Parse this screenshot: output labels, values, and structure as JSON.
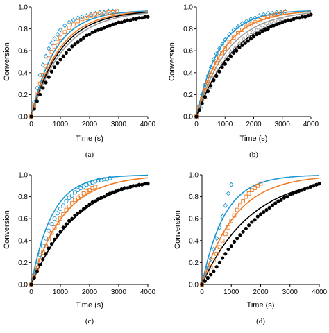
{
  "figure": {
    "panels": [
      {
        "id": "a",
        "label": "(a)"
      },
      {
        "id": "b",
        "label": "(b)"
      },
      {
        "id": "c",
        "label": "(c)"
      },
      {
        "id": "d",
        "label": "(d)"
      }
    ]
  },
  "chart_data": [
    {
      "type": "scatter",
      "panel": "(a)",
      "xlabel": "Time (s)",
      "ylabel": "Conversion",
      "xlim": [
        0,
        4000
      ],
      "ylim": [
        0,
        1.0
      ],
      "xticks": [
        "0",
        "1000",
        "2000",
        "3000",
        "4000"
      ],
      "yticks": [
        "0.0",
        "0.2",
        "0.4",
        "0.6",
        "0.8",
        "1.0"
      ],
      "grid": false,
      "legend": "none",
      "series": [
        {
          "color": "#1a95d0",
          "marker": "diamond-open",
          "x": [
            0,
            100,
            200,
            300,
            400,
            500,
            600,
            700,
            800,
            900,
            1000,
            1150,
            1300,
            1450,
            1600,
            1750,
            1900,
            2050,
            2200,
            2350,
            2500,
            2650,
            2800,
            2950
          ],
          "y": [
            0.0,
            0.13,
            0.26,
            0.38,
            0.47,
            0.55,
            0.62,
            0.67,
            0.71,
            0.75,
            0.79,
            0.83,
            0.86,
            0.88,
            0.9,
            0.91,
            0.92,
            0.93,
            0.94,
            0.95,
            0.95,
            0.96,
            0.96,
            0.96
          ]
        },
        {
          "color": "#ee7a24",
          "marker": "square-open",
          "x": [
            0,
            100,
            200,
            300,
            400,
            500,
            600,
            700,
            800,
            900,
            1000,
            1150,
            1300,
            1450,
            1600,
            1750,
            1900,
            2050,
            2200,
            2350,
            2500,
            2650,
            2800,
            2950
          ],
          "y": [
            0.0,
            0.1,
            0.2,
            0.3,
            0.38,
            0.46,
            0.53,
            0.59,
            0.64,
            0.68,
            0.72,
            0.77,
            0.81,
            0.84,
            0.87,
            0.89,
            0.9,
            0.92,
            0.93,
            0.94,
            0.94,
            0.95,
            0.95,
            0.96
          ]
        },
        {
          "color": "#000000",
          "marker": "circle-filled",
          "x": [
            0,
            100,
            200,
            300,
            400,
            500,
            600,
            700,
            800,
            900,
            1000,
            1100,
            1200,
            1300,
            1400,
            1500,
            1600,
            1700,
            1800,
            1900,
            2000,
            2100,
            2200,
            2300,
            2400,
            2500,
            2600,
            2700,
            2800,
            2900,
            3000,
            3100,
            3200,
            3300,
            3400,
            3500,
            3600,
            3700,
            3800,
            3900,
            4000
          ],
          "y": [
            0.0,
            0.07,
            0.14,
            0.2,
            0.26,
            0.31,
            0.36,
            0.41,
            0.45,
            0.49,
            0.52,
            0.55,
            0.58,
            0.61,
            0.64,
            0.66,
            0.68,
            0.7,
            0.72,
            0.74,
            0.75,
            0.77,
            0.78,
            0.79,
            0.8,
            0.81,
            0.82,
            0.83,
            0.84,
            0.85,
            0.86,
            0.86,
            0.87,
            0.88,
            0.88,
            0.89,
            0.89,
            0.9,
            0.9,
            0.91,
            0.91
          ]
        }
      ],
      "model_curves": [
        {
          "color": "#1a95d0",
          "k": 0.0012,
          "ymax": 0.97
        },
        {
          "color": "#ee7a24",
          "k": 0.00105,
          "ymax": 0.97
        },
        {
          "color": "#000000",
          "k": 0.00098,
          "ymax": 0.97
        },
        {
          "color": "#9a9a9a",
          "k": 0.0009,
          "ymax": 0.97
        }
      ]
    },
    {
      "type": "scatter",
      "panel": "(b)",
      "xlabel": "Time (s)",
      "ylabel": "Conversion",
      "xlim": [
        0,
        4000
      ],
      "ylim": [
        0,
        1.0
      ],
      "xticks": [
        "0",
        "1000",
        "2000",
        "3000",
        "4000"
      ],
      "yticks": [
        "0.0",
        "0.2",
        "0.4",
        "0.6",
        "0.8",
        "1.0"
      ],
      "grid": false,
      "legend": "none",
      "series": [
        {
          "color": "#1a95d0",
          "marker": "diamond-open",
          "x": [
            0,
            100,
            200,
            300,
            400,
            500,
            600,
            700,
            800,
            900,
            1000,
            1150,
            1300,
            1450,
            1600,
            1750,
            1900,
            2050,
            2200,
            2350,
            2500,
            2650,
            2800,
            2950,
            3100
          ],
          "y": [
            0.0,
            0.1,
            0.2,
            0.29,
            0.37,
            0.45,
            0.52,
            0.57,
            0.62,
            0.66,
            0.7,
            0.75,
            0.79,
            0.82,
            0.85,
            0.87,
            0.89,
            0.9,
            0.92,
            0.93,
            0.94,
            0.94,
            0.95,
            0.95,
            0.96
          ]
        },
        {
          "color": "#ee7a24",
          "marker": "square-open",
          "x": [
            0,
            100,
            200,
            300,
            400,
            500,
            600,
            700,
            800,
            900,
            1000,
            1150,
            1300,
            1450,
            1600,
            1750,
            1900,
            2050,
            2200,
            2350,
            2500,
            2650,
            2800,
            2950,
            3100
          ],
          "y": [
            0.0,
            0.08,
            0.16,
            0.24,
            0.31,
            0.38,
            0.44,
            0.49,
            0.54,
            0.58,
            0.62,
            0.68,
            0.72,
            0.76,
            0.79,
            0.82,
            0.84,
            0.86,
            0.88,
            0.9,
            0.91,
            0.92,
            0.93,
            0.94,
            0.95
          ]
        },
        {
          "color": "#9a9a9a",
          "marker": "triangle-open",
          "x": [
            0,
            150,
            300,
            450,
            600,
            750,
            900,
            1050,
            1200,
            1350,
            1500,
            1650,
            1800,
            1950,
            2100,
            2250,
            2400,
            2550,
            2700,
            2850,
            3000
          ],
          "y": [
            0.0,
            0.09,
            0.18,
            0.27,
            0.35,
            0.42,
            0.48,
            0.54,
            0.59,
            0.63,
            0.67,
            0.71,
            0.74,
            0.77,
            0.79,
            0.81,
            0.83,
            0.85,
            0.86,
            0.88,
            0.89
          ]
        },
        {
          "color": "#000000",
          "marker": "circle-filled",
          "x": [
            0,
            100,
            200,
            300,
            400,
            500,
            600,
            700,
            800,
            900,
            1000,
            1100,
            1200,
            1300,
            1400,
            1500,
            1600,
            1700,
            1800,
            1900,
            2000,
            2100,
            2200,
            2300,
            2400,
            2500,
            2600,
            2700,
            2800,
            2900,
            3000,
            3100,
            3200,
            3300,
            3400,
            3500,
            3600,
            3700,
            3800,
            3900,
            4000
          ],
          "y": [
            0.0,
            0.06,
            0.12,
            0.18,
            0.23,
            0.28,
            0.33,
            0.37,
            0.41,
            0.45,
            0.48,
            0.52,
            0.55,
            0.58,
            0.6,
            0.63,
            0.65,
            0.67,
            0.69,
            0.71,
            0.73,
            0.75,
            0.76,
            0.78,
            0.79,
            0.8,
            0.82,
            0.83,
            0.84,
            0.85,
            0.86,
            0.87,
            0.88,
            0.88,
            0.89,
            0.9,
            0.9,
            0.91,
            0.91,
            0.92,
            0.93
          ]
        }
      ],
      "model_curves": [
        {
          "color": "#1a95d0",
          "k": 0.00125,
          "ymax": 0.97
        },
        {
          "color": "#ee7a24",
          "k": 0.00105,
          "ymax": 0.97
        },
        {
          "color": "#9a9a9a",
          "k": 0.0009,
          "ymax": 0.97
        },
        {
          "color": "#000000",
          "k": 0.00075,
          "ymax": 0.97
        }
      ]
    },
    {
      "type": "scatter",
      "panel": "(c)",
      "xlabel": "Time (s)",
      "ylabel": "Conversion",
      "xlim": [
        0,
        4000
      ],
      "ylim": [
        0,
        1.0
      ],
      "xticks": [
        "0",
        "1000",
        "2000",
        "3000",
        "4000"
      ],
      "yticks": [
        "0.0",
        "0.2",
        "0.4",
        "0.6",
        "0.8",
        "1.0"
      ],
      "grid": false,
      "legend": "none",
      "series": [
        {
          "color": "#1a95d0",
          "marker": "circle-open",
          "x": [
            0,
            100,
            200,
            300,
            400,
            500,
            600,
            700,
            800,
            900,
            1000,
            1100,
            1200,
            1300,
            1400,
            1500,
            1600,
            1700,
            1800,
            1900,
            2000,
            2100,
            2200,
            2300,
            2400,
            2500,
            2600,
            2700
          ],
          "y": [
            0.0,
            0.09,
            0.18,
            0.27,
            0.35,
            0.42,
            0.49,
            0.55,
            0.6,
            0.65,
            0.69,
            0.72,
            0.76,
            0.79,
            0.81,
            0.84,
            0.86,
            0.88,
            0.89,
            0.91,
            0.92,
            0.93,
            0.94,
            0.95,
            0.95,
            0.96,
            0.96,
            0.97
          ]
        },
        {
          "color": "#ee7a24",
          "marker": "square-open",
          "x": [
            0,
            100,
            200,
            300,
            400,
            500,
            600,
            700,
            800,
            900,
            1000,
            1100,
            1200,
            1300,
            1400,
            1500,
            1600,
            1700,
            1800,
            1900,
            2000,
            2100,
            2200
          ],
          "y": [
            0.0,
            0.07,
            0.15,
            0.22,
            0.29,
            0.35,
            0.41,
            0.47,
            0.52,
            0.56,
            0.6,
            0.64,
            0.68,
            0.71,
            0.74,
            0.77,
            0.79,
            0.81,
            0.83,
            0.85,
            0.86,
            0.88,
            0.89
          ]
        },
        {
          "color": "#000000",
          "marker": "circle-filled",
          "x": [
            0,
            100,
            200,
            300,
            400,
            500,
            600,
            700,
            800,
            900,
            1000,
            1100,
            1200,
            1300,
            1400,
            1500,
            1600,
            1700,
            1800,
            1900,
            2000,
            2100,
            2200,
            2300,
            2400,
            2500,
            2600,
            2700,
            2800,
            2900,
            3000,
            3100,
            3200,
            3300,
            3400,
            3500,
            3600,
            3700,
            3800,
            3900,
            4000
          ],
          "y": [
            0.0,
            0.06,
            0.12,
            0.18,
            0.23,
            0.28,
            0.33,
            0.37,
            0.41,
            0.45,
            0.48,
            0.52,
            0.55,
            0.58,
            0.6,
            0.63,
            0.65,
            0.67,
            0.69,
            0.71,
            0.73,
            0.75,
            0.76,
            0.78,
            0.79,
            0.8,
            0.82,
            0.83,
            0.84,
            0.85,
            0.86,
            0.87,
            0.88,
            0.88,
            0.89,
            0.9,
            0.9,
            0.91,
            0.91,
            0.92,
            0.92
          ]
        }
      ],
      "model_curves": [
        {
          "color": "#1a95d0",
          "k": 0.0014,
          "ymax": 1.0
        },
        {
          "color": "#ee7a24",
          "k": 0.0009,
          "ymax": 1.0
        },
        {
          "color": "#000000",
          "k": 0.00063,
          "ymax": 1.0
        }
      ]
    },
    {
      "type": "scatter",
      "panel": "(d)",
      "xlabel": "Time (s)",
      "ylabel": "Conversion",
      "xlim": [
        0,
        4000
      ],
      "ylim": [
        0,
        1.0
      ],
      "xticks": [
        "0",
        "1000",
        "2000",
        "3000",
        "4000"
      ],
      "yticks": [
        "0.0",
        "0.2",
        "0.4",
        "0.6",
        "0.8",
        "1.0"
      ],
      "grid": false,
      "legend": "none",
      "series": [
        {
          "color": "#1a95d0",
          "marker": "diamond-open",
          "x": [
            0,
            100,
            200,
            300,
            400,
            500,
            600,
            700,
            800,
            900,
            1000
          ],
          "y": [
            0.0,
            0.07,
            0.15,
            0.23,
            0.32,
            0.42,
            0.52,
            0.62,
            0.72,
            0.83,
            0.91
          ]
        },
        {
          "color": "#ee7a24",
          "marker": "square-open",
          "x": [
            0,
            100,
            200,
            300,
            400,
            500,
            600,
            700,
            800,
            900,
            1000,
            1100,
            1200,
            1300,
            1400,
            1500,
            1600,
            1700,
            1800,
            1900,
            2000
          ],
          "y": [
            0.0,
            0.05,
            0.1,
            0.16,
            0.22,
            0.28,
            0.34,
            0.4,
            0.46,
            0.52,
            0.58,
            0.63,
            0.68,
            0.72,
            0.76,
            0.8,
            0.83,
            0.86,
            0.88,
            0.9,
            0.92
          ]
        },
        {
          "color": "#000000",
          "marker": "circle-filled",
          "x": [
            0,
            100,
            200,
            300,
            400,
            500,
            600,
            700,
            800,
            900,
            1000,
            1100,
            1200,
            1300,
            1400,
            1500,
            1600,
            1700,
            1800,
            1900,
            2000,
            2100,
            2200,
            2300,
            2400,
            2500,
            2600,
            2700,
            2800,
            2900,
            3000,
            3100,
            3200,
            3300,
            3400,
            3500,
            3600,
            3700,
            3800,
            3900,
            4000
          ],
          "y": [
            0.0,
            0.03,
            0.06,
            0.09,
            0.12,
            0.16,
            0.2,
            0.24,
            0.28,
            0.32,
            0.35,
            0.39,
            0.42,
            0.45,
            0.48,
            0.51,
            0.54,
            0.57,
            0.59,
            0.62,
            0.64,
            0.66,
            0.68,
            0.7,
            0.72,
            0.74,
            0.76,
            0.77,
            0.79,
            0.8,
            0.82,
            0.83,
            0.84,
            0.85,
            0.86,
            0.87,
            0.88,
            0.89,
            0.9,
            0.91,
            0.92
          ]
        }
      ],
      "model_curves": [
        {
          "color": "#1a95d0",
          "k": 0.0013,
          "ymax": 1.0
        },
        {
          "color": "#ee7a24",
          "k": 0.00088,
          "ymax": 1.0
        },
        {
          "color": "#000000",
          "k": 0.0006,
          "ymax": 1.0
        }
      ]
    }
  ]
}
